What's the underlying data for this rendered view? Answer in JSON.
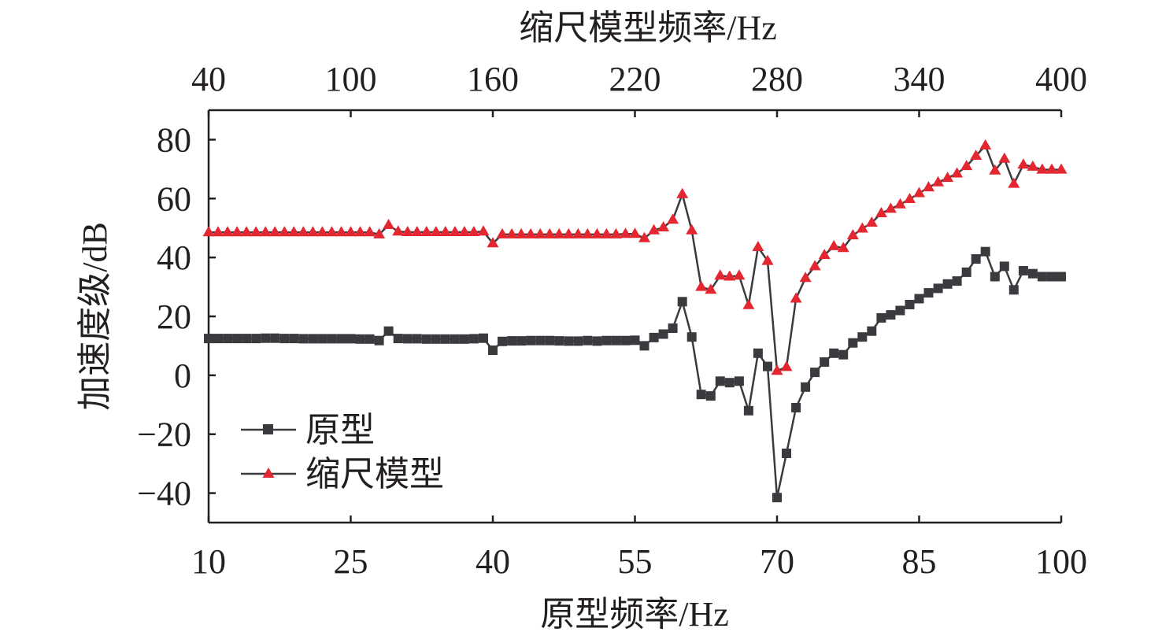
{
  "chart_data": {
    "type": "line",
    "xlabel": "原型频率/Hz",
    "x2label": "缩尺模型频率/Hz",
    "ylabel": "加速度级/dB",
    "xlim": [
      10,
      100
    ],
    "x2lim": [
      40,
      400
    ],
    "ylim": [
      -50,
      90
    ],
    "x_ticks": [
      "10",
      "25",
      "40",
      "55",
      "70",
      "85",
      "100"
    ],
    "x2_ticks": [
      "40",
      "100",
      "160",
      "220",
      "280",
      "340",
      "400"
    ],
    "y_ticks": [
      "80",
      "60",
      "40",
      "20",
      "0",
      "−20",
      "−40"
    ],
    "grid": false,
    "legend_position": "bottom-left",
    "series": [
      {
        "name": "原型",
        "marker": "square",
        "color": "#3a3b3f",
        "x": [
          10,
          11,
          12,
          13,
          14,
          15,
          16,
          17,
          18,
          19,
          20,
          21,
          22,
          23,
          24,
          25,
          26,
          27,
          28,
          29,
          30,
          31,
          32,
          33,
          34,
          35,
          36,
          37,
          38,
          39,
          40,
          41,
          42,
          43,
          44,
          45,
          46,
          47,
          48,
          49,
          50,
          51,
          52,
          53,
          54,
          55,
          56,
          57,
          58,
          59,
          60,
          61,
          62,
          63,
          64,
          65,
          66,
          67,
          68,
          69,
          70,
          71,
          72,
          73,
          74,
          75,
          76,
          77,
          78,
          79,
          80,
          81,
          82,
          83,
          84,
          85,
          86,
          87,
          88,
          89,
          90,
          91,
          92,
          93,
          94,
          95,
          96,
          97,
          98,
          99,
          100
        ],
        "y": [
          12.5,
          12.5,
          12.5,
          12.5,
          12.5,
          12.5,
          12.6,
          12.6,
          12.5,
          12.5,
          12.4,
          12.4,
          12.4,
          12.4,
          12.4,
          12.4,
          12.3,
          12.3,
          11.8,
          15.0,
          12.5,
          12.4,
          12.4,
          12.3,
          12.3,
          12.3,
          12.3,
          12.3,
          12.4,
          12.6,
          8.5,
          11.5,
          11.7,
          11.7,
          11.8,
          11.8,
          11.8,
          11.7,
          11.6,
          11.6,
          11.8,
          11.6,
          11.8,
          11.8,
          11.8,
          11.9,
          10.0,
          12.8,
          14.0,
          16.0,
          25.0,
          13.0,
          -6.5,
          -7.0,
          -2.0,
          -2.5,
          -2.0,
          -12.0,
          7.5,
          3.0,
          -41.5,
          -26.5,
          -11.0,
          -4.0,
          1.0,
          4.5,
          7.5,
          7.0,
          11.0,
          13.0,
          15.0,
          19.5,
          20.5,
          22.0,
          24.0,
          26.0,
          28.0,
          29.5,
          31.0,
          32.0,
          35.0,
          39.5,
          42.0,
          33.5,
          37.0,
          29.0,
          35.5,
          34.5,
          33.5,
          33.5,
          33.5
        ]
      },
      {
        "name": "缩尺模型",
        "marker": "triangle",
        "color": "#e3262f",
        "x": [
          10,
          11,
          12,
          13,
          14,
          15,
          16,
          17,
          18,
          19,
          20,
          21,
          22,
          23,
          24,
          25,
          26,
          27,
          28,
          29,
          30,
          31,
          32,
          33,
          34,
          35,
          36,
          37,
          38,
          39,
          40,
          41,
          42,
          43,
          44,
          45,
          46,
          47,
          48,
          49,
          50,
          51,
          52,
          53,
          54,
          55,
          56,
          57,
          58,
          59,
          60,
          61,
          62,
          63,
          64,
          65,
          66,
          67,
          68,
          69,
          70,
          71,
          72,
          73,
          74,
          75,
          76,
          77,
          78,
          79,
          80,
          81,
          82,
          83,
          84,
          85,
          86,
          87,
          88,
          89,
          90,
          91,
          92,
          93,
          94,
          95,
          96,
          97,
          98,
          99,
          100
        ],
        "y": [
          48.5,
          48.5,
          48.5,
          48.5,
          48.5,
          48.5,
          48.5,
          48.5,
          48.5,
          48.5,
          48.5,
          48.5,
          48.5,
          48.5,
          48.5,
          48.5,
          48.5,
          48.5,
          47.8,
          51.0,
          48.8,
          48.6,
          48.6,
          48.6,
          48.6,
          48.6,
          48.6,
          48.6,
          48.6,
          48.8,
          44.8,
          47.8,
          47.8,
          47.8,
          47.8,
          47.8,
          47.8,
          47.8,
          47.8,
          47.8,
          47.8,
          47.8,
          47.8,
          47.8,
          48.0,
          48.0,
          46.5,
          49.2,
          50.2,
          52.8,
          61.5,
          49.2,
          30.0,
          29.0,
          33.8,
          33.5,
          33.8,
          23.8,
          43.5,
          38.8,
          1.5,
          2.8,
          26.0,
          33.0,
          37.0,
          40.8,
          43.8,
          43.2,
          47.5,
          49.8,
          51.8,
          55.0,
          56.5,
          58.0,
          59.8,
          61.8,
          63.8,
          65.5,
          67.0,
          68.5,
          71.0,
          74.5,
          78.0,
          69.5,
          73.5,
          65.0,
          71.5,
          70.8,
          69.8,
          69.8,
          69.8
        ]
      }
    ]
  }
}
